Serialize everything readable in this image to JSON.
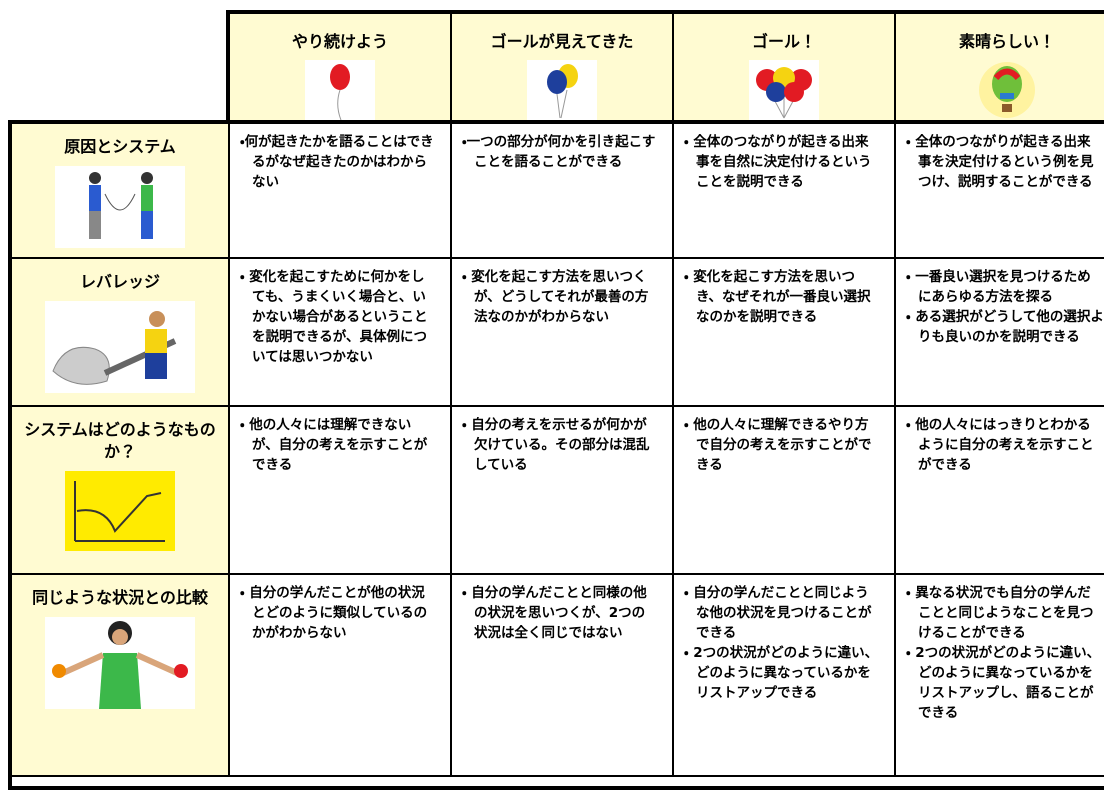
{
  "table": {
    "columns": [
      "やり続けよう",
      "ゴールが見えてきた",
      "ゴール！",
      "素晴らしい！"
    ],
    "rows": [
      {
        "label": "原因とシステム",
        "cells": [
          [
            "・何が起きたかを語ることはできるがなぜ起きたのかはわからない"
          ],
          [
            "・一つの部分が何かを引き起こすことを語ることができる"
          ],
          [
            "・ 全体のつながりが起きる出来事を自然に決定付けるということを説明できる"
          ],
          [
            "・ 全体のつながりが起きる出来事を決定付けるという例を見つけ、説明することができる"
          ]
        ]
      },
      {
        "label": "レバレッジ",
        "cells": [
          [
            "・ 変化を起こすために何かをしても、うまくいく場合と、いかない場合があるということを説明できるが、具体例については思いつかない"
          ],
          [
            "・ 変化を起こす方法を思いつくが、どうしてそれが最善の方法なのかがわからない"
          ],
          [
            "・ 変化を起こす方法を思いつき、なぜそれが一番良い選択なのかを説明できる"
          ],
          [
            "・ 一番良い選択を見つけるためにあらゆる方法を探る",
            "・ ある選択がどうして他の選択よりも良いのかを説明できる"
          ]
        ]
      },
      {
        "label": "システムはどのようなものか？",
        "cells": [
          [
            "・ 他の人々には理解できないが、自分の考えを示すことができる"
          ],
          [
            "・ 自分の考えを示せるが何かが欠けている。その部分は混乱している"
          ],
          [
            "・ 他の人々に理解できるやり方で自分の考えを示すことができる"
          ],
          [
            "・ 他の人々にはっきりとわかるように自分の考えを示すことができる"
          ]
        ]
      },
      {
        "label": "同じような状況との比較",
        "cells": [
          [
            "・ 自分の学んだことが他の状況とどのように類似しているのかがわからない"
          ],
          [
            "・ 自分の学んだことと同様の他の状況を思いつくが、2つの状況は全く同じではない"
          ],
          [
            "・ 自分の学んだことと同じような他の状況を見つけることができる",
            "・ 2つの状況がどのように違い、どのように異なっているかをリストアップできる"
          ],
          [
            "・ 異なる状況でも自分の学んだことと同じようなことを見つけることができる",
            "・ 2つの状況がどのように違い、どのように異なっているかをリストアップし、語ることができる"
          ]
        ]
      }
    ]
  }
}
